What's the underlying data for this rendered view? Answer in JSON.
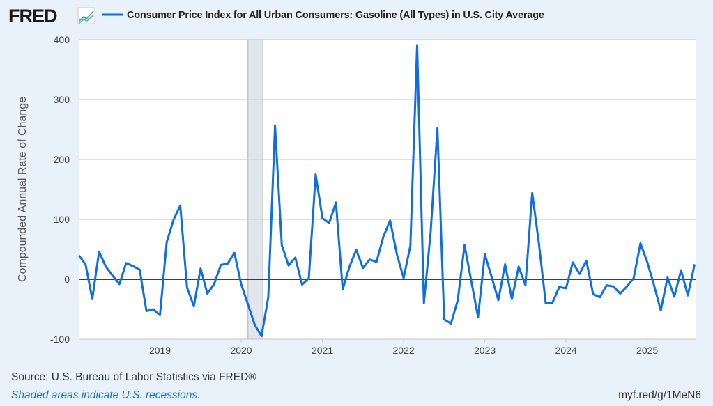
{
  "header": {
    "logo": "FRED",
    "logo_icon": "line-chart-icon",
    "series_color": "#0f6fe0"
  },
  "footer": {
    "source": "Source: U.S. Bureau of Labor Statistics via FRED®",
    "recession_note": "Shaded areas indicate U.S. recessions.",
    "short_url": "myf.red/g/1MeN6"
  },
  "chart_data": {
    "type": "line",
    "title": "Consumer Price Index for All Urban Consumers: Gasoline (All Types) in U.S. City Average",
    "xlabel": "",
    "ylabel": "Compounded Annual Rate of Change",
    "ylim": [
      -100,
      400
    ],
    "yticks": [
      -100,
      0,
      100,
      200,
      300,
      400
    ],
    "ytick_labels": [
      "-100",
      "0",
      "100",
      "200",
      "300",
      "400"
    ],
    "xticks": [
      "2019",
      "2020",
      "2021",
      "2022",
      "2023",
      "2024",
      "2025"
    ],
    "x_start": "2018-01",
    "x_end": "2025-08",
    "frequency": "monthly",
    "grid": true,
    "recessions": [
      {
        "start": "2020-02",
        "end": "2020-04"
      }
    ],
    "series": [
      {
        "name": "Consumer Price Index for All Urban Consumers: Gasoline (All Types) in U.S. City Average",
        "color": "#0f6fe0",
        "values": [
          40,
          25,
          -33,
          46,
          21,
          6,
          -8,
          27,
          22,
          16,
          -53,
          -50,
          -60,
          62,
          99,
          123,
          -14,
          -45,
          18,
          -24,
          -8,
          24,
          26,
          44,
          -8,
          -42,
          -76,
          -95,
          -30,
          256,
          57,
          23,
          36,
          -9,
          2,
          175,
          102,
          94,
          128,
          -17,
          21,
          49,
          19,
          33,
          29,
          71,
          98,
          42,
          2,
          56,
          391,
          -40,
          79,
          252,
          -67,
          -74,
          -35,
          57,
          -3,
          -63,
          42,
          4,
          -35,
          25,
          -33,
          21,
          -10,
          144,
          59,
          -40,
          -39,
          -13,
          -15,
          28,
          9,
          31,
          -25,
          -30,
          -10,
          -12,
          -24,
          -12,
          2,
          60,
          29,
          -10,
          -52,
          3,
          -29,
          15,
          -27,
          25
        ]
      }
    ]
  }
}
